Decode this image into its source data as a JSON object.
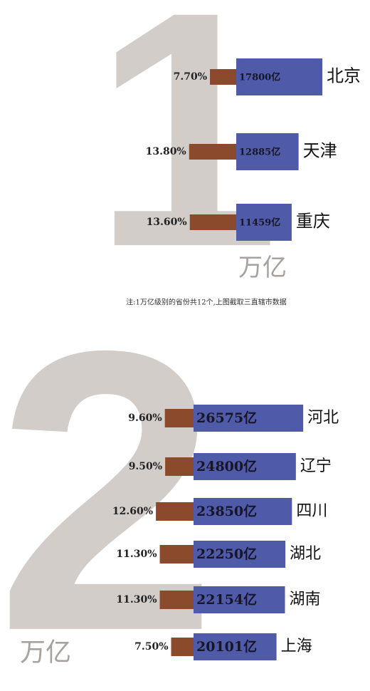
{
  "chart_data": [
    {
      "type": "bar",
      "big_label": "1",
      "unit_label": "万亿",
      "categories": [
        "北京",
        "天津",
        "重庆"
      ],
      "series": [
        {
          "color": "#4f5ba8",
          "values": [
            17800,
            12885,
            11459
          ],
          "value_labels": [
            "17800亿",
            "12885亿",
            "11459亿"
          ]
        },
        {
          "color": "#8b4a2b",
          "values": [
            7.7,
            13.8,
            13.6
          ],
          "value_labels": [
            "7.70%",
            "13.80%",
            "13.60%"
          ]
        }
      ]
    },
    {
      "type": "bar",
      "big_label": "2",
      "unit_label": "万亿",
      "categories": [
        "河北",
        "辽宁",
        "四川",
        "湖北",
        "湖南",
        "上海"
      ],
      "series": [
        {
          "color": "#4f5ba8",
          "values": [
            26575,
            24800,
            23850,
            22250,
            22154,
            20101
          ],
          "value_labels": [
            "26575亿",
            "24800亿",
            "23850亿",
            "22250亿",
            "22154亿",
            "20101亿"
          ]
        },
        {
          "color": "#8b4a2b",
          "values": [
            9.6,
            9.5,
            12.6,
            11.3,
            11.3,
            7.5
          ],
          "value_labels": [
            "9.60%",
            "9.50%",
            "12.60%",
            "11.30%",
            "11.30%",
            "7.50%"
          ]
        }
      ]
    }
  ],
  "note": "注:1万亿级别的省份共12个,上图截取三直辖市数据"
}
